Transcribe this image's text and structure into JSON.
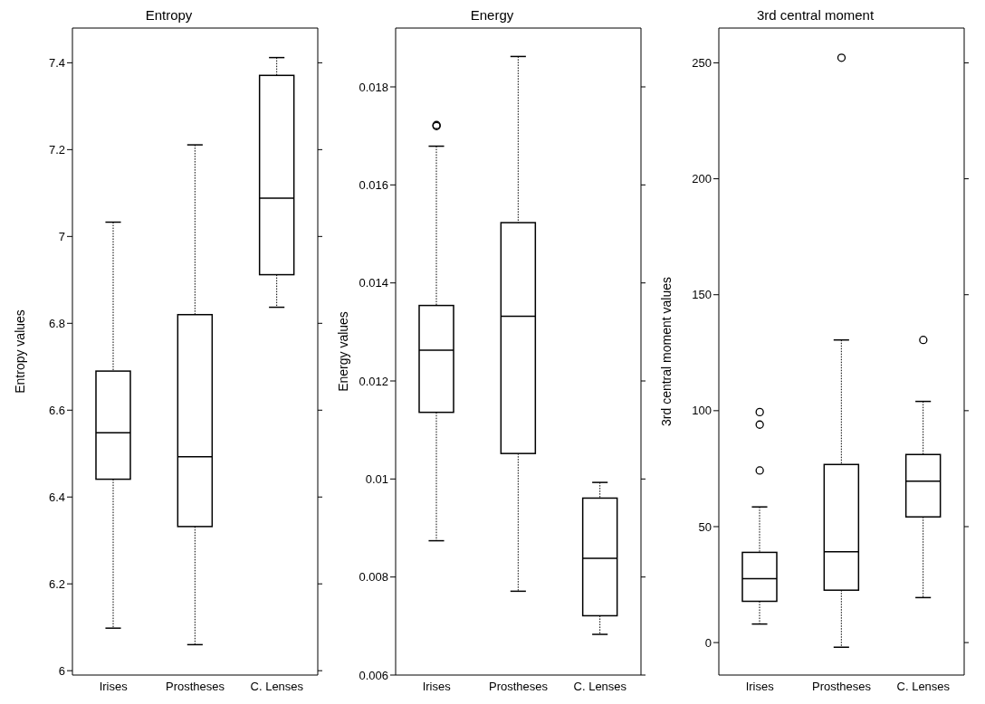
{
  "chart_data": [
    {
      "type": "box",
      "title": "Entropy",
      "ylabel": "Entropy values",
      "categories": [
        "Irises",
        "Prostheses",
        "C. Lenses"
      ],
      "ylim": [
        5.99,
        7.48
      ],
      "yticks": [
        6,
        6.2,
        6.4,
        6.6,
        6.8,
        7,
        7.2,
        7.4
      ],
      "boxes": [
        {
          "low": 6.098,
          "q1": 6.441,
          "median": 6.548,
          "q3": 6.69,
          "high": 7.033
        },
        {
          "low": 6.06,
          "q1": 6.332,
          "median": 6.493,
          "q3": 6.82,
          "high": 7.211
        },
        {
          "low": 6.837,
          "q1": 6.912,
          "median": 7.088,
          "q3": 7.371,
          "high": 7.412
        }
      ]
    },
    {
      "type": "box",
      "title": "Energy",
      "ylabel": "Energy values",
      "categories": [
        "Irises",
        "Prostheses",
        "C. Lenses"
      ],
      "ylim": [
        0.006,
        0.0192
      ],
      "yticks": [
        0.006,
        0.008,
        0.01,
        0.012,
        0.014,
        0.016,
        0.018
      ],
      "boxes": [
        {
          "low": 0.00874,
          "q1": 0.01136,
          "median": 0.01263,
          "q3": 0.01354,
          "high": 0.01679,
          "outliers": [
            0.01722,
            0.0172
          ]
        },
        {
          "low": 0.00771,
          "q1": 0.01052,
          "median": 0.01332,
          "q3": 0.01523,
          "high": 0.01862
        },
        {
          "low": 0.00683,
          "q1": 0.00721,
          "median": 0.00838,
          "q3": 0.00961,
          "high": 0.00993
        }
      ]
    },
    {
      "type": "box",
      "title": "3rd central moment",
      "ylabel": "3rd central moment values",
      "categories": [
        "Irises",
        "Prostheses",
        "C. Lenses"
      ],
      "ylim": [
        -14,
        265
      ],
      "yticks": [
        0,
        50,
        100,
        150,
        200,
        250
      ],
      "boxes": [
        {
          "low": 8,
          "q1": 17.8,
          "median": 27.6,
          "q3": 38.9,
          "high": 58.5,
          "outliers": [
            99.4,
            94,
            74.2
          ]
        },
        {
          "low": -2,
          "q1": 22.6,
          "median": 39.2,
          "q3": 76.8,
          "high": 130.5,
          "outliers": [
            252.2
          ]
        },
        {
          "low": 19.4,
          "q1": 54.2,
          "median": 69.6,
          "q3": 81.1,
          "high": 104,
          "outliers": [
            130.5
          ]
        }
      ]
    }
  ]
}
